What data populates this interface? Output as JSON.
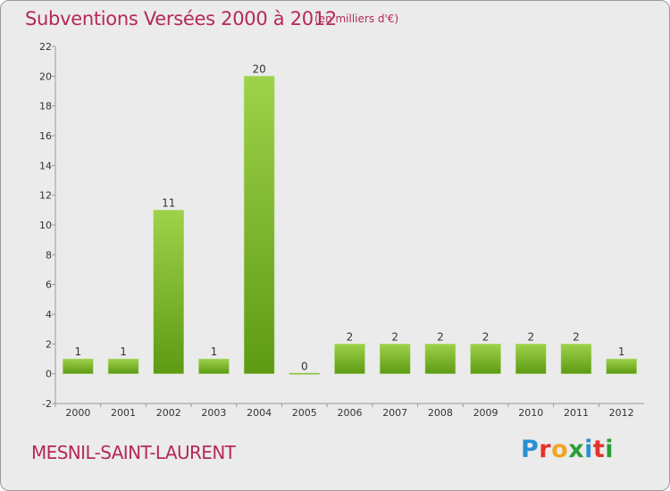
{
  "header": {
    "title": "Subventions Versées 2000 à 2012",
    "subtitle": "(en milliers d'€)"
  },
  "footer": {
    "commune": "MESNIL-SAINT-LAURENT",
    "logo": {
      "letters": [
        "P",
        "r",
        "o",
        "x",
        "i",
        "t",
        "i"
      ]
    }
  },
  "colors": {
    "title": "#b5285a",
    "bar_light": "#9ed24a",
    "bar_dark": "#5e9a14",
    "background": "#ebebeb"
  },
  "chart_data": {
    "type": "bar",
    "title": "Subventions Versées 2000 à 2012",
    "subtitle": "(en milliers d'€)",
    "xlabel": "",
    "ylabel": "",
    "categories": [
      "2000",
      "2001",
      "2002",
      "2003",
      "2004",
      "2005",
      "2006",
      "2007",
      "2008",
      "2009",
      "2010",
      "2011",
      "2012"
    ],
    "values": [
      1,
      1,
      11,
      1,
      20,
      0,
      2,
      2,
      2,
      2,
      2,
      2,
      1
    ],
    "ylim": [
      -2,
      22
    ],
    "yticks": [
      -2,
      0,
      2,
      4,
      6,
      8,
      10,
      12,
      14,
      16,
      18,
      20,
      22
    ],
    "grid": false,
    "legend": "none"
  }
}
